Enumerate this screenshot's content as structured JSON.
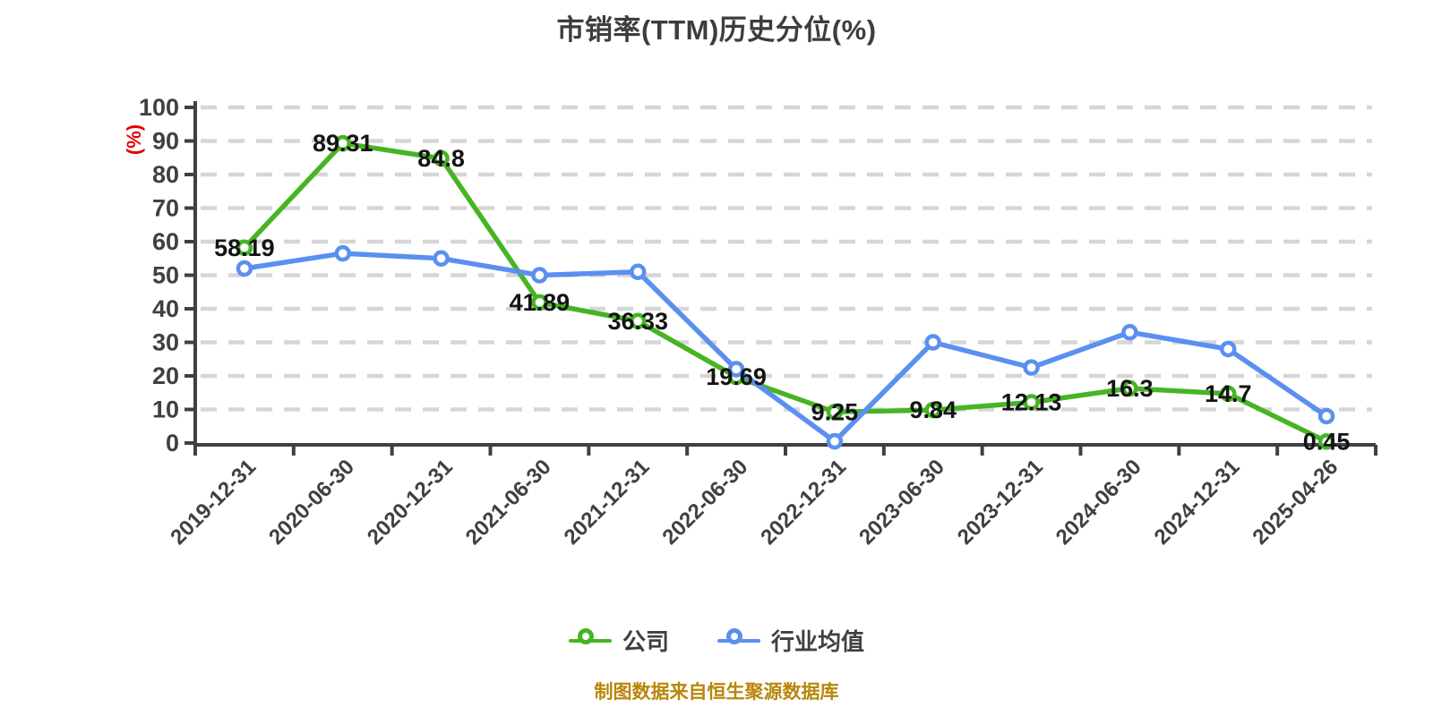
{
  "title": "市销率(TTM)历史分位(%)",
  "source_note": "制图数据来自恒生聚源数据库",
  "colors": {
    "axis": "#404040",
    "grid": "#d6d6d6",
    "tick_text": "#404040",
    "data_label": "#141414",
    "title_text": "#3d3d3d",
    "y_axis_name": "#e60000",
    "source_text": "#b8860b",
    "background": "#ffffff"
  },
  "chart_data": {
    "type": "line",
    "title": "市销率(TTM)历史分位(%)",
    "ylabel": "(%)",
    "xlabel": "",
    "ylim": [
      0,
      100
    ],
    "y_tick_step": 10,
    "grid": "horizontal-dashed",
    "legend_position": "bottom",
    "x_label_rotation": 45,
    "categories": [
      "2019-12-31",
      "2020-06-30",
      "2020-12-31",
      "2021-06-30",
      "2021-12-31",
      "2022-06-30",
      "2022-12-31",
      "2023-06-30",
      "2023-12-31",
      "2024-06-30",
      "2024-12-31",
      "2025-04-26"
    ],
    "series": [
      {
        "name": "公司",
        "color": "#47b424",
        "marker": "circle-white-fill",
        "point_labels": true,
        "values": [
          58.19,
          89.31,
          84.8,
          41.89,
          36.33,
          19.69,
          9.25,
          9.84,
          12.13,
          16.3,
          14.7,
          0.45
        ]
      },
      {
        "name": "行业均值",
        "color": "#5b8ff0",
        "marker": "circle-white-fill",
        "point_labels": false,
        "values": [
          52,
          56.5,
          55,
          50,
          51,
          22,
          0.5,
          30,
          22.5,
          33,
          28,
          8
        ]
      }
    ]
  }
}
